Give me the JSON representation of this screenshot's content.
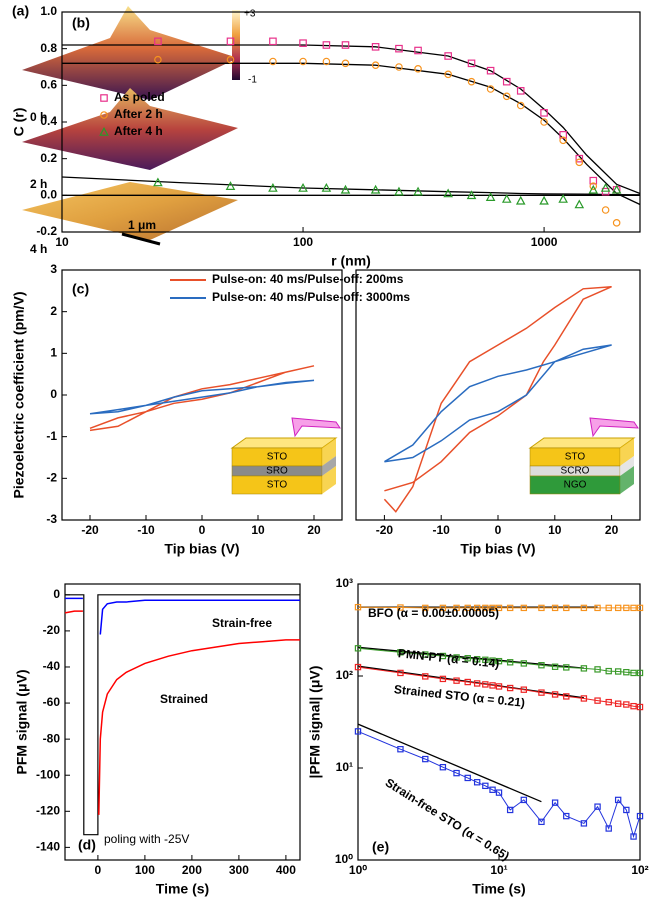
{
  "chart_data": [
    {
      "type": "image",
      "label": "(a)",
      "layers": [
        "0 h",
        "2 h",
        "4 h"
      ],
      "colorbar_labels": [
        "+3",
        "-1"
      ],
      "scale_bar": "1 μm"
    },
    {
      "type": "scatter",
      "label": "(b)",
      "xlabel": "r (nm)",
      "ylabel": "C (r)",
      "log_x": true,
      "xlim": [
        10,
        2500
      ],
      "xticks": [
        10,
        100,
        1000
      ],
      "ylim": [
        -0.2,
        1.0
      ],
      "yticks": [
        {
          "value": -0.2,
          "label": "-0.2"
        },
        {
          "value": 0,
          "label": "0.0"
        },
        0.2,
        0.4,
        0.6,
        0.8,
        {
          "value": 1,
          "label": "1.0"
        }
      ],
      "legend": "left",
      "series": [
        {
          "name": "As poled",
          "color": "#e8308a",
          "marker": "square",
          "x": [
            25,
            50,
            75,
            100,
            125,
            150,
            200,
            250,
            300,
            400,
            500,
            600,
            700,
            800,
            1000,
            1200,
            1400,
            1600,
            1800,
            2000
          ],
          "values": [
            0.84,
            0.84,
            0.84,
            0.83,
            0.82,
            0.82,
            0.81,
            0.8,
            0.79,
            0.76,
            0.72,
            0.68,
            0.62,
            0.57,
            0.45,
            0.33,
            0.2,
            0.08,
            0.02,
            0.03
          ]
        },
        {
          "name": "After 2 h",
          "color": "#f7931e",
          "marker": "circle",
          "x": [
            25,
            50,
            75,
            100,
            125,
            150,
            200,
            250,
            300,
            400,
            500,
            600,
            700,
            800,
            1000,
            1200,
            1400,
            1600,
            1800,
            2000
          ],
          "values": [
            0.74,
            0.74,
            0.73,
            0.73,
            0.73,
            0.72,
            0.71,
            0.7,
            0.69,
            0.66,
            0.62,
            0.58,
            0.54,
            0.49,
            0.4,
            0.3,
            0.18,
            0.05,
            -0.08,
            -0.15
          ]
        },
        {
          "name": "After 4 h",
          "color": "#2a9a2a",
          "marker": "triangle",
          "x": [
            25,
            50,
            75,
            100,
            125,
            150,
            200,
            250,
            300,
            400,
            500,
            600,
            700,
            800,
            1000,
            1200,
            1400,
            1600,
            1800,
            2000
          ],
          "values": [
            0.07,
            0.05,
            0.04,
            0.04,
            0.04,
            0.03,
            0.03,
            0.02,
            0.02,
            0.01,
            0,
            -0.01,
            -0.02,
            -0.03,
            -0.03,
            -0.02,
            -0.05,
            0.03,
            0.04,
            0.03
          ]
        }
      ],
      "fits": [
        {
          "color": "#000000",
          "x": [
            10,
            100,
            200,
            400,
            600,
            800,
            1000,
            1200,
            1500,
            2000,
            2500
          ],
          "values": [
            0.82,
            0.82,
            0.81,
            0.76,
            0.68,
            0.58,
            0.47,
            0.37,
            0.22,
            0.06,
            0.01
          ]
        },
        {
          "color": "#000000",
          "x": [
            10,
            100,
            200,
            400,
            600,
            800,
            1000,
            1200,
            1500,
            2000,
            2500
          ],
          "values": [
            0.72,
            0.72,
            0.71,
            0.66,
            0.59,
            0.5,
            0.41,
            0.31,
            0.17,
            0.01,
            -0.05
          ]
        },
        {
          "color": "#000000",
          "x": [
            10,
            30,
            100,
            200,
            400,
            600,
            800,
            1000,
            1500,
            2000,
            2500
          ],
          "values": [
            0.1,
            0.07,
            0.04,
            0.03,
            0.02,
            0.015,
            0.01,
            0.008,
            0.006,
            0.004,
            0.003
          ]
        },
        {
          "color": "#000000",
          "x": [
            10,
            2500
          ],
          "values": [
            0,
            0
          ]
        }
      ]
    },
    {
      "type": "line",
      "label": "(c)",
      "xlabel": "Tip bias (V)",
      "ylabel": "Piezoelectric coefficient (pm/V)",
      "xlim": [
        -25,
        25
      ],
      "xticks": [
        -20,
        -10,
        0,
        10,
        20
      ],
      "ylim": [
        -3,
        3
      ],
      "yticks": [
        -3,
        -2,
        -1,
        0,
        1,
        2,
        3
      ],
      "legend": "top",
      "inset_layers": [
        "STO",
        "SRO",
        "STO"
      ],
      "series": [
        {
          "name": "Pulse-on: 40 ms/Pulse-off: 200ms",
          "color": "#e8502a",
          "x": [
            -20,
            -15,
            -10,
            -5,
            0,
            5,
            10,
            15,
            20,
            15,
            10,
            5,
            0,
            -5,
            -10,
            -15,
            -20
          ],
          "values": [
            -0.85,
            -0.75,
            -0.4,
            -0.05,
            0.15,
            0.25,
            0.4,
            0.55,
            0.7,
            0.55,
            0.3,
            0.05,
            -0.1,
            -0.2,
            -0.4,
            -0.55,
            -0.8
          ]
        },
        {
          "name": "Pulse-on: 40 ms/Pulse-off: 3000ms",
          "color": "#2a6cc0",
          "x": [
            -20,
            -15,
            -10,
            -5,
            0,
            5,
            10,
            15,
            20,
            15,
            10,
            5,
            0,
            -5,
            -10,
            -15,
            -20
          ],
          "values": [
            -0.45,
            -0.4,
            -0.25,
            -0.05,
            0.1,
            0.15,
            0.2,
            0.28,
            0.35,
            0.3,
            0.2,
            0.05,
            -0.05,
            -0.15,
            -0.25,
            -0.35,
            -0.45
          ]
        }
      ]
    },
    {
      "type": "line",
      "xlabel": "Tip bias (V)",
      "xlim": [
        -25,
        25
      ],
      "xticks": [
        -20,
        -10,
        0,
        10,
        20
      ],
      "ylim": [
        -3,
        3
      ],
      "inset_layers": [
        "STO",
        "SCRO",
        "NGO"
      ],
      "series": [
        {
          "color": "#e8502a",
          "x": [
            -20,
            -15,
            -10,
            -5,
            0,
            5,
            8,
            10,
            15,
            20,
            15,
            10,
            5,
            0,
            -5,
            -8,
            -10,
            -15,
            -18,
            -20
          ],
          "values": [
            -2.3,
            -2.1,
            -1.6,
            -0.9,
            -0.5,
            0,
            0.8,
            1.2,
            2.3,
            2.6,
            2.55,
            2.1,
            1.6,
            1.2,
            0.8,
            0.2,
            -0.2,
            -2.2,
            -2.8,
            -2.5
          ]
        },
        {
          "color": "#2a6cc0",
          "x": [
            -20,
            -15,
            -10,
            -5,
            0,
            5,
            10,
            15,
            20,
            15,
            10,
            5,
            0,
            -5,
            -10,
            -15,
            -20
          ],
          "values": [
            -1.6,
            -1.5,
            -1.1,
            -0.6,
            -0.4,
            0,
            0.8,
            1,
            1.2,
            1.1,
            0.8,
            0.6,
            0.45,
            0.2,
            -0.4,
            -1.2,
            -1.6
          ]
        }
      ]
    },
    {
      "type": "line",
      "label": "(d)",
      "xlabel": "Time (s)",
      "ylabel": "PFM signal (μV)",
      "annotation": "poling with -25V",
      "xlim": [
        -70,
        430
      ],
      "xticks": [
        0,
        100,
        200,
        300,
        400
      ],
      "ylim": [
        -147,
        6
      ],
      "yticks": [
        -140,
        -120,
        -100,
        -80,
        -60,
        -40,
        -20,
        0
      ],
      "series": [
        {
          "color": "#000000",
          "x": [
            -70,
            -30,
            -30,
            0,
            0,
            430
          ],
          "values": [
            0,
            0,
            -133,
            -133,
            0,
            0
          ]
        },
        {
          "name": "Strain-free",
          "color": "#0000ff",
          "x": [
            -70,
            -50,
            -32,
            0,
            5,
            10,
            20,
            40,
            60,
            100,
            150,
            200,
            250,
            300,
            350,
            400,
            430
          ],
          "values": [
            -2,
            -2,
            -2,
            null,
            -22,
            -8,
            -5,
            -4,
            -4,
            -3,
            -3,
            -3,
            -3,
            -3,
            -3,
            -3,
            -3
          ]
        },
        {
          "name": "Strained",
          "color": "#ff0000",
          "x": [
            -70,
            -50,
            -32,
            0,
            2,
            5,
            10,
            20,
            40,
            60,
            100,
            150,
            200,
            250,
            300,
            350,
            400,
            430
          ],
          "values": [
            -10,
            -9,
            -9,
            null,
            -122,
            -80,
            -65,
            -55,
            -47,
            -43,
            -38,
            -34,
            -31,
            -29,
            -27,
            -26,
            -25,
            -25
          ]
        }
      ]
    },
    {
      "type": "scatter",
      "label": "(e)",
      "xlabel": "Time (s)",
      "ylabel": "|PFM signal| (μV)",
      "log_x": true,
      "log_y": true,
      "xlim": [
        1,
        100
      ],
      "xticks": [
        {
          "value": 1,
          "label": "10⁰"
        },
        {
          "value": 10,
          "label": "10¹"
        },
        {
          "value": 100,
          "label": "10²"
        }
      ],
      "ylim": [
        1,
        1000
      ],
      "yticks": [
        {
          "value": 1,
          "label": "10⁰"
        },
        {
          "value": 10,
          "label": "10¹"
        },
        {
          "value": 100,
          "label": "10²"
        },
        {
          "value": 1000,
          "label": "10³"
        }
      ],
      "series": [
        {
          "name": "BFO (α = 0.00±0.00005)",
          "color": "#f7931e",
          "marker": "square",
          "x": [
            1,
            2,
            3,
            4,
            5,
            6,
            7,
            8,
            9,
            10,
            12,
            15,
            20,
            25,
            30,
            40,
            50,
            60,
            70,
            80,
            90,
            100
          ],
          "values": [
            560,
            555,
            550,
            550,
            550,
            550,
            550,
            550,
            550,
            550,
            550,
            550,
            550,
            550,
            550,
            550,
            550,
            550,
            550,
            550,
            550,
            550
          ]
        },
        {
          "name": "PMN-PT (α = 0.14)",
          "color": "#3a9a2a",
          "marker": "square",
          "x": [
            1,
            2,
            3,
            4,
            5,
            6,
            7,
            8,
            9,
            10,
            12,
            15,
            20,
            25,
            30,
            40,
            50,
            60,
            70,
            80,
            90,
            100
          ],
          "values": [
            200,
            181,
            171,
            165,
            159,
            156,
            152,
            150,
            147,
            145,
            141,
            137,
            131,
            126,
            124,
            121,
            118,
            113,
            112,
            110,
            108,
            108
          ]
        },
        {
          "name": "Strained STO (α = 0.21)",
          "color": "#ee2222",
          "marker": "square",
          "x": [
            1,
            2,
            3,
            4,
            5,
            6,
            7,
            8,
            9,
            10,
            12,
            15,
            20,
            25,
            30,
            40,
            50,
            60,
            70,
            80,
            90,
            100
          ],
          "values": [
            125,
            108,
            99,
            93,
            89,
            86,
            83,
            81,
            79,
            77,
            74,
            71,
            66,
            63,
            60,
            57,
            54,
            52,
            50,
            49,
            47,
            46
          ]
        },
        {
          "name": "Strain-free STO (α = 0.65)",
          "color": "#2233dd",
          "marker": "square",
          "x": [
            1,
            2,
            3,
            4,
            5,
            6,
            7,
            8,
            9,
            10,
            12,
            15,
            20,
            25,
            30,
            40,
            50,
            60,
            70,
            80,
            90,
            100
          ],
          "values": [
            25,
            16,
            12.5,
            10.2,
            8.8,
            7.8,
            7,
            6.4,
            5.8,
            5.4,
            3.5,
            4.5,
            2.6,
            4.2,
            3,
            2.5,
            3.8,
            2.2,
            4.5,
            3.5,
            1.8,
            3
          ]
        }
      ],
      "fits": [
        {
          "color": "#000000",
          "x": [
            1,
            50
          ],
          "values": [
            560,
            560
          ]
        },
        {
          "color": "#000000",
          "x": [
            1,
            40
          ],
          "values": [
            205,
            122
          ]
        },
        {
          "color": "#000000",
          "x": [
            1,
            40
          ],
          "values": [
            128,
            58
          ]
        },
        {
          "color": "#000000",
          "x": [
            1,
            20
          ],
          "values": [
            30,
            4.3
          ]
        }
      ]
    }
  ]
}
